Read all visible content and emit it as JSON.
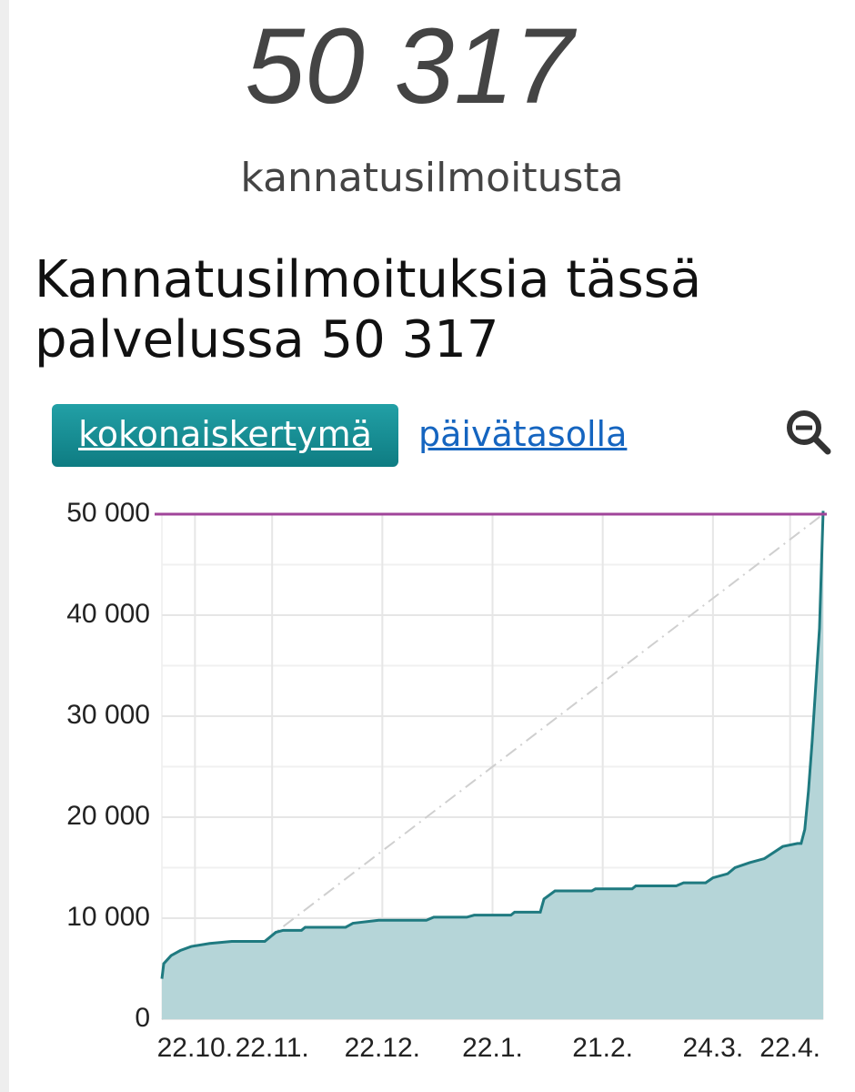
{
  "header": {
    "count": "50 317",
    "unit": "kannatusilmoitusta",
    "heading": "Kannatusilmoituksia tässä palvelussa 50 317"
  },
  "tabs": [
    "kokonaiskertymä",
    "päivätasolla"
  ],
  "chart_data": {
    "type": "area",
    "x": [
      0,
      0.5,
      2.5,
      5,
      8,
      13,
      19,
      28,
      31,
      33,
      38,
      39,
      50,
      52,
      59,
      72,
      74,
      83,
      85,
      95,
      96,
      103,
      104,
      107,
      117,
      118,
      128,
      129,
      140,
      142,
      148,
      150,
      154,
      156,
      160,
      164,
      169,
      173,
      174,
      175,
      176,
      177,
      179,
      180
    ],
    "series": [
      {
        "color": "#1f7a80",
        "fill": "#b5d5d8",
        "values": [
          4000,
          5500,
          6300,
          6800,
          7200,
          7500,
          7700,
          7700,
          8600,
          8800,
          8800,
          9100,
          9100,
          9500,
          9800,
          9800,
          10100,
          10100,
          10300,
          10300,
          10600,
          10600,
          11900,
          12700,
          12700,
          12900,
          12900,
          13200,
          13200,
          13500,
          13500,
          14000,
          14400,
          15000,
          15500,
          15900,
          17100,
          17400,
          17400,
          18800,
          22600,
          27500,
          38700,
          50317
        ]
      }
    ],
    "target": 50000,
    "target_color": "#a0459a",
    "xlim": [
      0,
      180
    ],
    "ylim": [
      0,
      50000
    ],
    "xticks": [
      {
        "value": 9,
        "label": "22.10."
      },
      {
        "value": 30,
        "label": "22.11."
      },
      {
        "value": 60,
        "label": "22.12."
      },
      {
        "value": 90,
        "label": "22.1."
      },
      {
        "value": 120,
        "label": "21.2."
      },
      {
        "value": 150,
        "label": "24.3."
      },
      {
        "value": 171,
        "label": "22.4."
      }
    ],
    "yticks": [
      0,
      {
        "value": 10000,
        "label": "10 000"
      },
      {
        "value": 20000,
        "label": "20 000"
      },
      {
        "value": 30000,
        "label": "30 000"
      },
      {
        "value": 40000,
        "label": "40 000"
      },
      {
        "value": 50000,
        "label": "50 000"
      }
    ],
    "grid": true
  }
}
